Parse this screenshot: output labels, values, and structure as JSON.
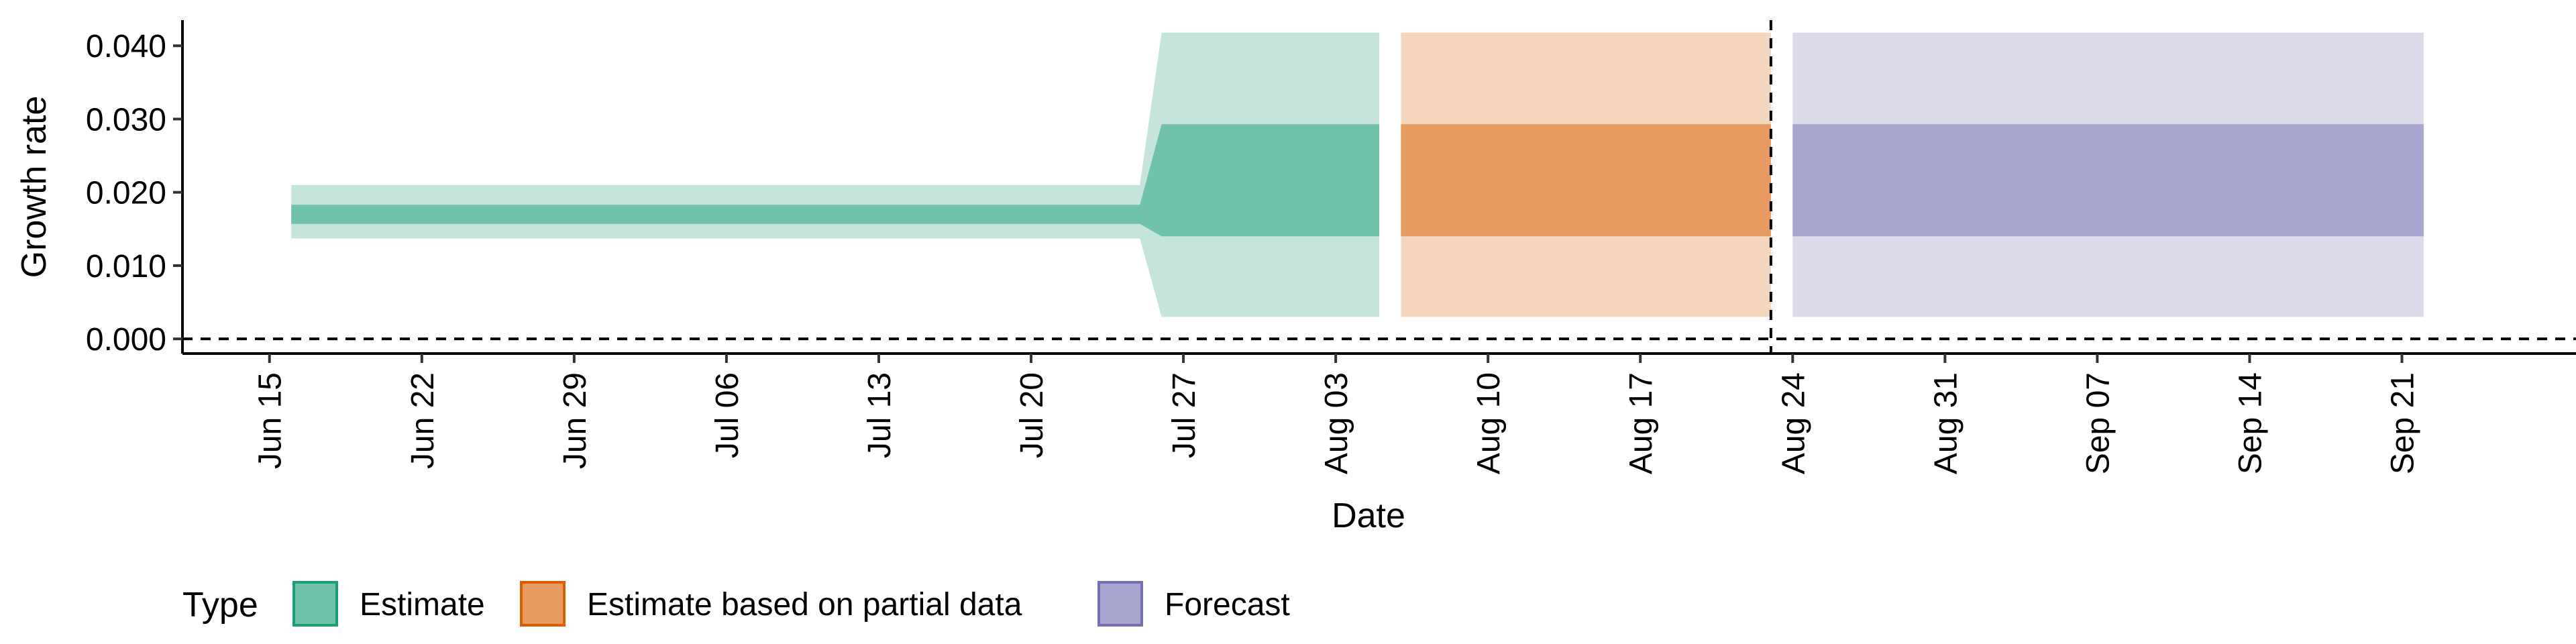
{
  "chart_data": {
    "type": "area",
    "xlabel": "Date",
    "ylabel": "Growth rate",
    "xlim": [
      "2021-06-11",
      "2021-09-29"
    ],
    "ylim": [
      -0.002,
      0.0435
    ],
    "y_ticks": [
      0.0,
      0.01,
      0.02,
      0.03,
      0.04
    ],
    "y_tick_labels": [
      "0.000",
      "0.010",
      "0.020",
      "0.030",
      "0.040"
    ],
    "x_ticks": [
      "2021-06-15",
      "2021-06-22",
      "2021-06-29",
      "2021-07-06",
      "2021-07-13",
      "2021-07-20",
      "2021-07-27",
      "2021-08-03",
      "2021-08-10",
      "2021-08-17",
      "2021-08-24",
      "2021-08-31",
      "2021-09-07",
      "2021-09-14",
      "2021-09-21"
    ],
    "x_tick_labels": [
      "Jun 15",
      "Jun 22",
      "Jun 29",
      "Jul 06",
      "Jul 13",
      "Jul 20",
      "Jul 27",
      "Aug 03",
      "Aug 10",
      "Aug 17",
      "Aug 24",
      "Aug 31",
      "Sep 07",
      "Sep 14",
      "Sep 21"
    ],
    "reference_lines": {
      "horizontal_y": 0.0,
      "vertical_x": "2021-08-23"
    },
    "grid": false,
    "legend": {
      "title": "Type",
      "position": "bottom-left"
    },
    "series": [
      {
        "name": "Estimate",
        "color": "#1b9e77",
        "fill_inner": "#71c2aa",
        "fill_outer": "#c5e5dc",
        "x": [
          "2021-06-16",
          "2021-07-25",
          "2021-07-26",
          "2021-08-05"
        ],
        "lower_90": [
          0.0137,
          0.0137,
          0.003,
          0.003
        ],
        "upper_90": [
          0.021,
          0.021,
          0.0418,
          0.0418
        ],
        "lower_50": [
          0.0157,
          0.0157,
          0.014,
          0.014
        ],
        "upper_50": [
          0.0183,
          0.0183,
          0.0293,
          0.0293
        ]
      },
      {
        "name": "Estimate based on partial data",
        "color": "#d95f02",
        "fill_inner": "#e79b60",
        "fill_outer": "#f5d7c0",
        "x": [
          "2021-08-06",
          "2021-08-23"
        ],
        "lower_90": [
          0.003,
          0.003
        ],
        "upper_90": [
          0.0418,
          0.0418
        ],
        "lower_50": [
          0.014,
          0.014
        ],
        "upper_50": [
          0.0293,
          0.0293
        ]
      },
      {
        "name": "Forecast",
        "color": "#7570b3",
        "fill_inner": "#a8a6d1",
        "fill_outer": "#dcdbeb",
        "x": [
          "2021-08-24",
          "2021-09-22"
        ],
        "lower_90": [
          0.003,
          0.003
        ],
        "upper_90": [
          0.0418,
          0.0418
        ],
        "lower_50": [
          0.014,
          0.014
        ],
        "upper_50": [
          0.0293,
          0.0293
        ]
      }
    ]
  }
}
